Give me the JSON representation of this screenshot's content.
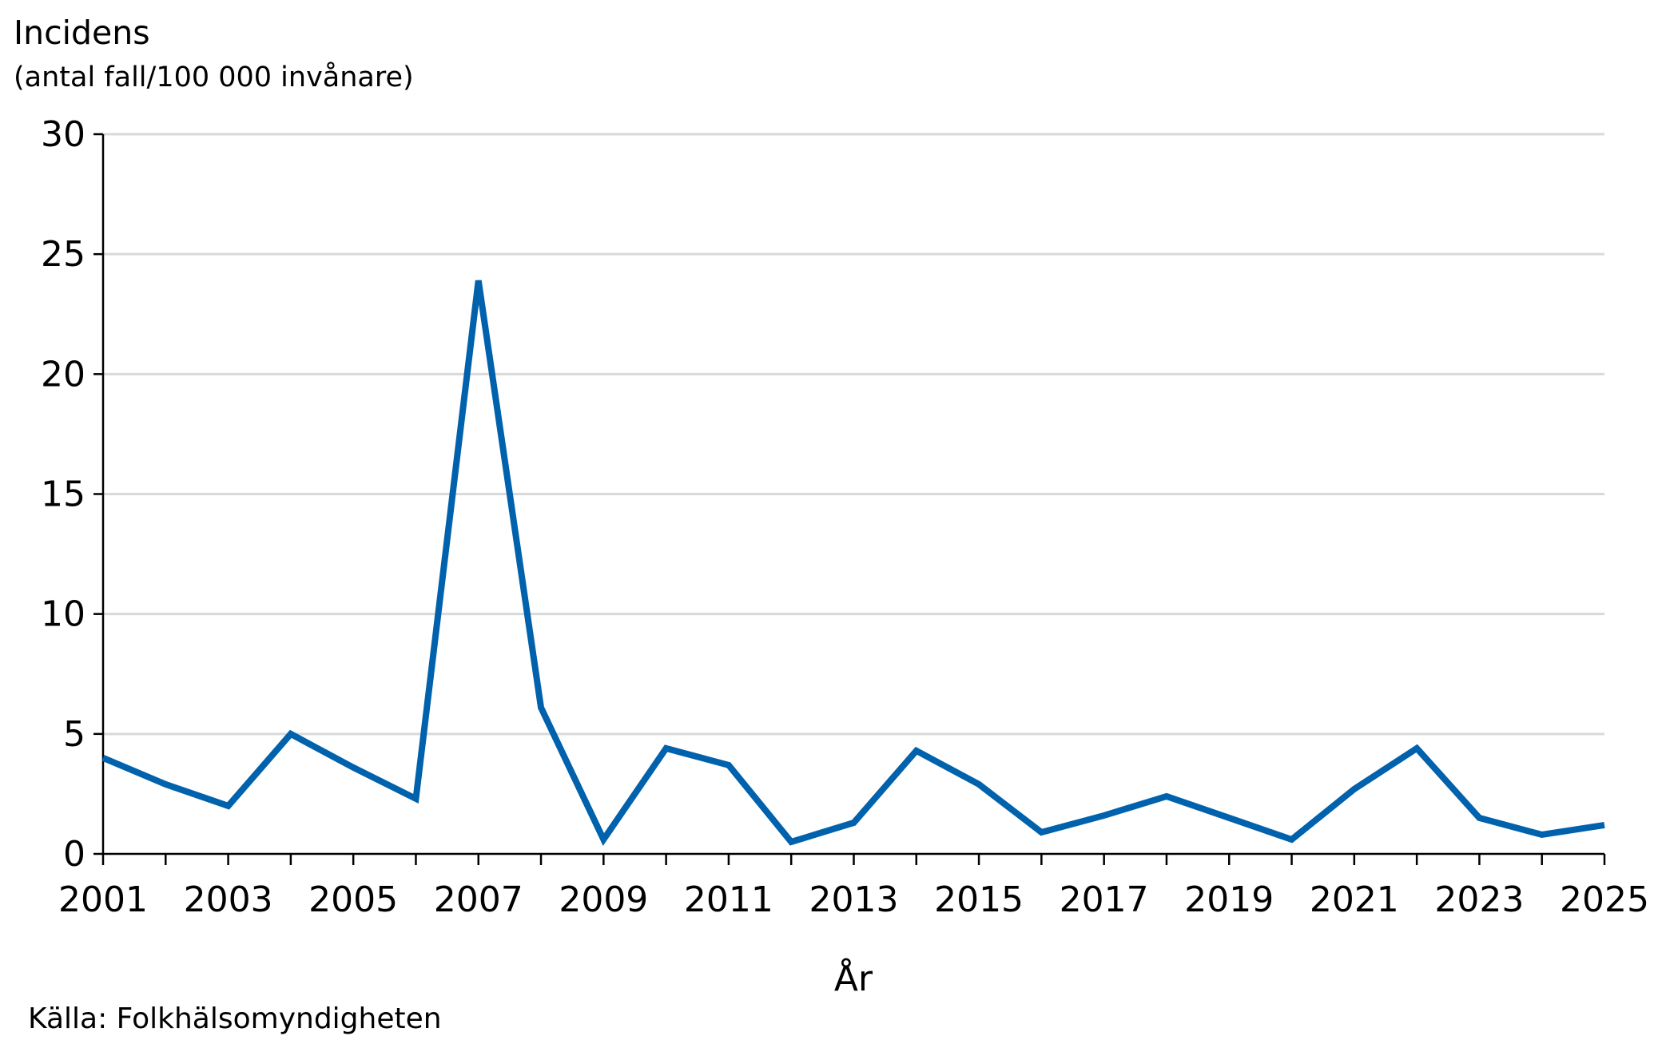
{
  "chart_data": {
    "type": "line",
    "title": "Incidens",
    "subtitle": "(antal fall/100 000 invånare)",
    "xlabel": "År",
    "ylabel": "",
    "source": "Källa: Folkhälsomyndigheten",
    "ylim": [
      0,
      30
    ],
    "yticks": [
      0,
      5,
      10,
      15,
      20,
      25,
      30
    ],
    "xlim": [
      2001,
      2025
    ],
    "xtick_labels": [
      2001,
      2003,
      2005,
      2007,
      2009,
      2011,
      2013,
      2015,
      2017,
      2019,
      2021,
      2023,
      2025
    ],
    "grid": "horizontal",
    "line_color": "#0062AC",
    "x": [
      2001,
      2002,
      2003,
      2004,
      2005,
      2006,
      2007,
      2008,
      2009,
      2010,
      2011,
      2012,
      2013,
      2014,
      2015,
      2016,
      2017,
      2018,
      2019,
      2020,
      2021,
      2022,
      2023,
      2024,
      2025
    ],
    "values": [
      4.0,
      2.9,
      2.0,
      5.0,
      3.6,
      2.3,
      23.9,
      6.1,
      0.6,
      4.4,
      3.7,
      0.5,
      1.3,
      4.3,
      2.9,
      0.9,
      1.6,
      2.4,
      1.5,
      0.6,
      2.7,
      4.4,
      1.5,
      0.8,
      1.2
    ]
  }
}
